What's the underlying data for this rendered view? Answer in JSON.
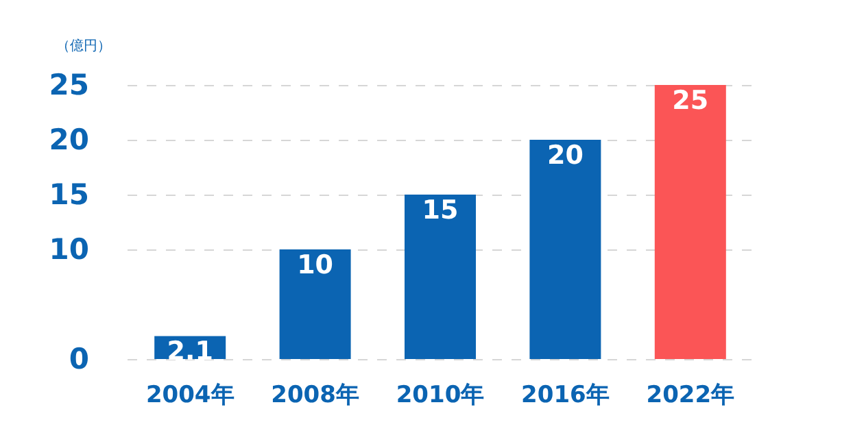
{
  "chart_data": {
    "type": "bar",
    "ylabel": "（億円）",
    "categories": [
      "2004年",
      "2008年",
      "2010年",
      "2016年",
      "2022年"
    ],
    "values": [
      2.1,
      10,
      15,
      20,
      25
    ],
    "colors": [
      "#0b64b2",
      "#0b64b2",
      "#0b64b2",
      "#0b64b2",
      "#fb5556"
    ],
    "ylim": [
      0,
      25
    ],
    "yticks": [
      0,
      10,
      15,
      20,
      25
    ],
    "grid": "y",
    "data_labels": true
  }
}
